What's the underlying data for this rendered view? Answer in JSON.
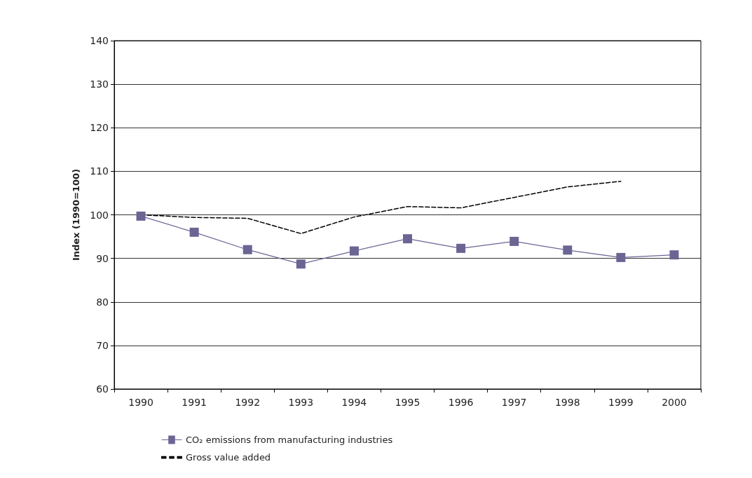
{
  "chart_data": {
    "type": "line",
    "ylabel": "Index (1990=100)",
    "categories": [
      "1990",
      "1991",
      "1992",
      "1993",
      "1994",
      "1995",
      "1996",
      "1997",
      "1998",
      "1999",
      "2000"
    ],
    "series": [
      {
        "name": "CO₂ emissions from manufacturing industries",
        "color": "#6b6594",
        "marker": "square",
        "line_style": "solid",
        "values": [
          99.7,
          96.0,
          92.0,
          88.7,
          91.7,
          94.5,
          92.3,
          93.9,
          91.9,
          90.2,
          90.8
        ]
      },
      {
        "name": "Gross value added",
        "color": "#000000",
        "marker": "none",
        "line_style": "dashed",
        "values": [
          100,
          99.4,
          99.2,
          95.7,
          99.5,
          101.9,
          101.6,
          104,
          106.4,
          107.7,
          null
        ]
      }
    ],
    "ylim": [
      60,
      140
    ],
    "yticks": [
      60,
      70,
      80,
      90,
      100,
      110,
      120,
      130,
      140
    ],
    "grid": "y",
    "legend": "bottom left"
  }
}
